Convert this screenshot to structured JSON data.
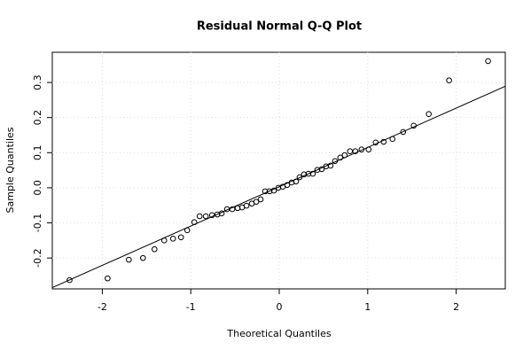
{
  "chart_data": {
    "type": "scatter",
    "title": "Residual Normal Q-Q Plot",
    "x_label": "Theoretical Quantiles",
    "y_label": "Sample Quantiles",
    "x": [
      -2.37,
      -1.94,
      -1.7,
      -1.54,
      -1.41,
      -1.3,
      -1.2,
      -1.11,
      -1.04,
      -0.96,
      -0.9,
      -0.83,
      -0.76,
      -0.7,
      -0.65,
      -0.59,
      -0.53,
      -0.47,
      -0.42,
      -0.37,
      -0.31,
      -0.26,
      -0.21,
      -0.16,
      -0.11,
      -0.06,
      -0.01,
      0.04,
      0.09,
      0.14,
      0.19,
      0.23,
      0.28,
      0.33,
      0.38,
      0.43,
      0.48,
      0.53,
      0.58,
      0.63,
      0.69,
      0.74,
      0.8,
      0.86,
      0.93,
      1.01,
      1.09,
      1.18,
      1.28,
      1.4,
      1.52,
      1.69,
      1.92,
      2.36
    ],
    "values": [
      -0.263,
      -0.258,
      -0.205,
      -0.2,
      -0.175,
      -0.15,
      -0.145,
      -0.141,
      -0.121,
      -0.098,
      -0.081,
      -0.081,
      -0.078,
      -0.076,
      -0.073,
      -0.061,
      -0.061,
      -0.058,
      -0.056,
      -0.051,
      -0.045,
      -0.04,
      -0.033,
      -0.01,
      -0.01,
      -0.008,
      0.0,
      0.003,
      0.008,
      0.015,
      0.018,
      0.03,
      0.038,
      0.04,
      0.04,
      0.051,
      0.053,
      0.061,
      0.063,
      0.076,
      0.086,
      0.093,
      0.104,
      0.104,
      0.109,
      0.109,
      0.129,
      0.131,
      0.139,
      0.159,
      0.177,
      0.21,
      0.306,
      0.361
    ],
    "color": "#000000",
    "line": {
      "intercept": 0.003,
      "slope": 0.112
    },
    "xlim": [
      -2.565,
      2.555
    ],
    "ylim": [
      -0.288,
      0.386
    ],
    "xticks": [
      -2,
      -1,
      0,
      1,
      2
    ],
    "yticks": [
      -0.2,
      -0.1,
      {
        "value": 0,
        "label": "0.0"
      },
      0.1,
      0.2,
      0.3
    ],
    "grid": true
  }
}
